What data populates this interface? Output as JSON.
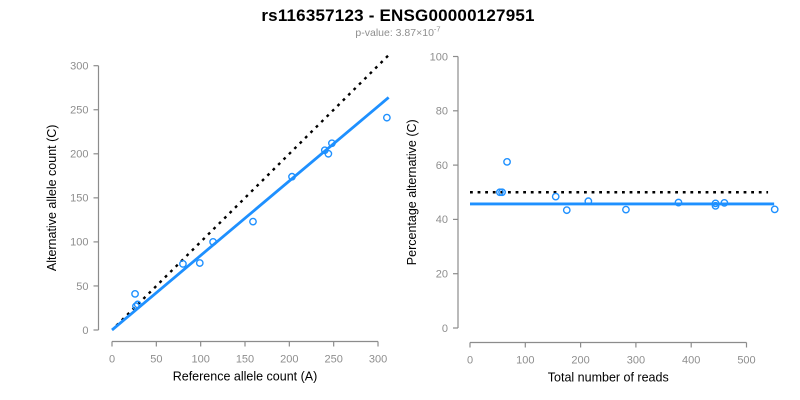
{
  "header": {
    "title": "rs116357123 - ENSG00000127951",
    "pvalue_label": "p-value: ",
    "pvalue_mantissa": "3.87×10",
    "pvalue_exponent": "-7"
  },
  "colors": {
    "accent": "#1E90FF",
    "axis": "#8c8c8c",
    "tick_label": "#8e8e8e",
    "axis_title": "#000000",
    "dotted": "#000000",
    "background": "#ffffff"
  },
  "chart_data": [
    {
      "type": "scatter",
      "name": "allele-counts",
      "xlabel": "Reference allele count (A)",
      "ylabel": "Alternative allele count (C)",
      "xlim": [
        0,
        318
      ],
      "ylim": [
        0,
        312
      ],
      "xticks": [
        0,
        50,
        100,
        150,
        200,
        250,
        300
      ],
      "yticks": [
        0,
        50,
        100,
        150,
        200,
        250,
        300
      ],
      "grid": false,
      "marker": "open-circle",
      "points": [
        [
          26,
          41
        ],
        [
          27,
          27
        ],
        [
          29,
          29
        ],
        [
          80,
          75
        ],
        [
          99,
          76
        ],
        [
          114,
          100
        ],
        [
          159,
          123
        ],
        [
          203,
          174
        ],
        [
          240,
          204
        ],
        [
          244,
          200
        ],
        [
          248,
          212
        ],
        [
          310,
          241
        ]
      ],
      "lines": [
        {
          "name": "identity",
          "style": "dotted",
          "color": "#000000",
          "slope": 1,
          "intercept": 0,
          "x_range": [
            5,
            312
          ]
        },
        {
          "name": "fit",
          "style": "solid",
          "color": "#1E90FF",
          "slope": 0.846,
          "intercept": 0,
          "x_range": [
            0,
            312
          ]
        }
      ]
    },
    {
      "type": "scatter",
      "name": "percentage-alternative",
      "xlabel": "Total number of reads",
      "ylabel": "Percentage alternative (C)",
      "xlim": [
        0,
        560
      ],
      "ylim": [
        0,
        100
      ],
      "xticks": [
        0,
        100,
        200,
        300,
        400,
        500
      ],
      "yticks": [
        0,
        20,
        40,
        60,
        80,
        100
      ],
      "grid": false,
      "marker": "open-circle",
      "points": [
        [
          67,
          61.2
        ],
        [
          54,
          50.0
        ],
        [
          58,
          50.0
        ],
        [
          155,
          48.4
        ],
        [
          175,
          43.4
        ],
        [
          214,
          46.7
        ],
        [
          282,
          43.6
        ],
        [
          377,
          46.2
        ],
        [
          444,
          45.9
        ],
        [
          444,
          45.0
        ],
        [
          460,
          46.1
        ],
        [
          551,
          43.7
        ]
      ],
      "lines": [
        {
          "name": "null-50pct",
          "style": "dotted",
          "color": "#000000",
          "slope": 0,
          "intercept": 50,
          "x_range": [
            0,
            539
          ]
        },
        {
          "name": "fit",
          "style": "solid",
          "color": "#1E90FF",
          "slope": 0,
          "intercept": 45.7,
          "x_range": [
            0,
            550
          ]
        }
      ]
    }
  ]
}
